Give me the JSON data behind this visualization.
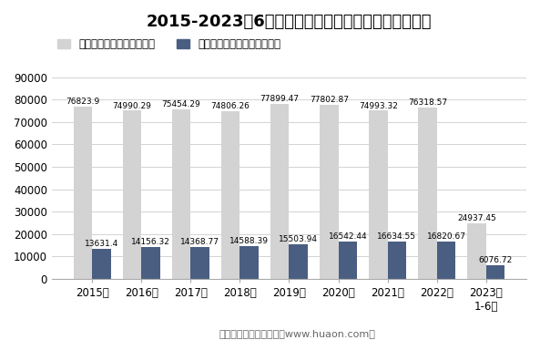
{
  "title": "2015-2023年6月江苏各房屋建筑竣工面积及竣工价值",
  "categories": [
    "2015年",
    "2016年",
    "2017年",
    "2018年",
    "2019年",
    "2020年",
    "2021年",
    "2022年",
    "2023年\n1-6月"
  ],
  "area_values": [
    76823.9,
    74990.29,
    75454.29,
    74806.26,
    77899.47,
    77802.87,
    74993.32,
    76318.57,
    24937.45
  ],
  "value_values": [
    13631.4,
    14156.32,
    14368.77,
    14588.39,
    15503.94,
    16542.44,
    16634.55,
    16820.67,
    6076.72
  ],
  "area_color": "#d3d3d3",
  "value_color": "#4a5e82",
  "ylim": [
    0,
    90000
  ],
  "yticks": [
    0,
    10000,
    20000,
    30000,
    40000,
    50000,
    60000,
    70000,
    80000,
    90000
  ],
  "legend_area": "房屋建筑竣工面积（万㎡）",
  "legend_value": "房屋建筑业竣工价值（亿元）",
  "footer": "制图：华经产业研究院（www.huaon.com）",
  "background_color": "#ffffff",
  "bar_width": 0.38,
  "font_size_title": 13,
  "font_size_label": 6.5,
  "font_size_tick": 8.5,
  "font_size_legend": 8.5,
  "font_size_footer": 8
}
